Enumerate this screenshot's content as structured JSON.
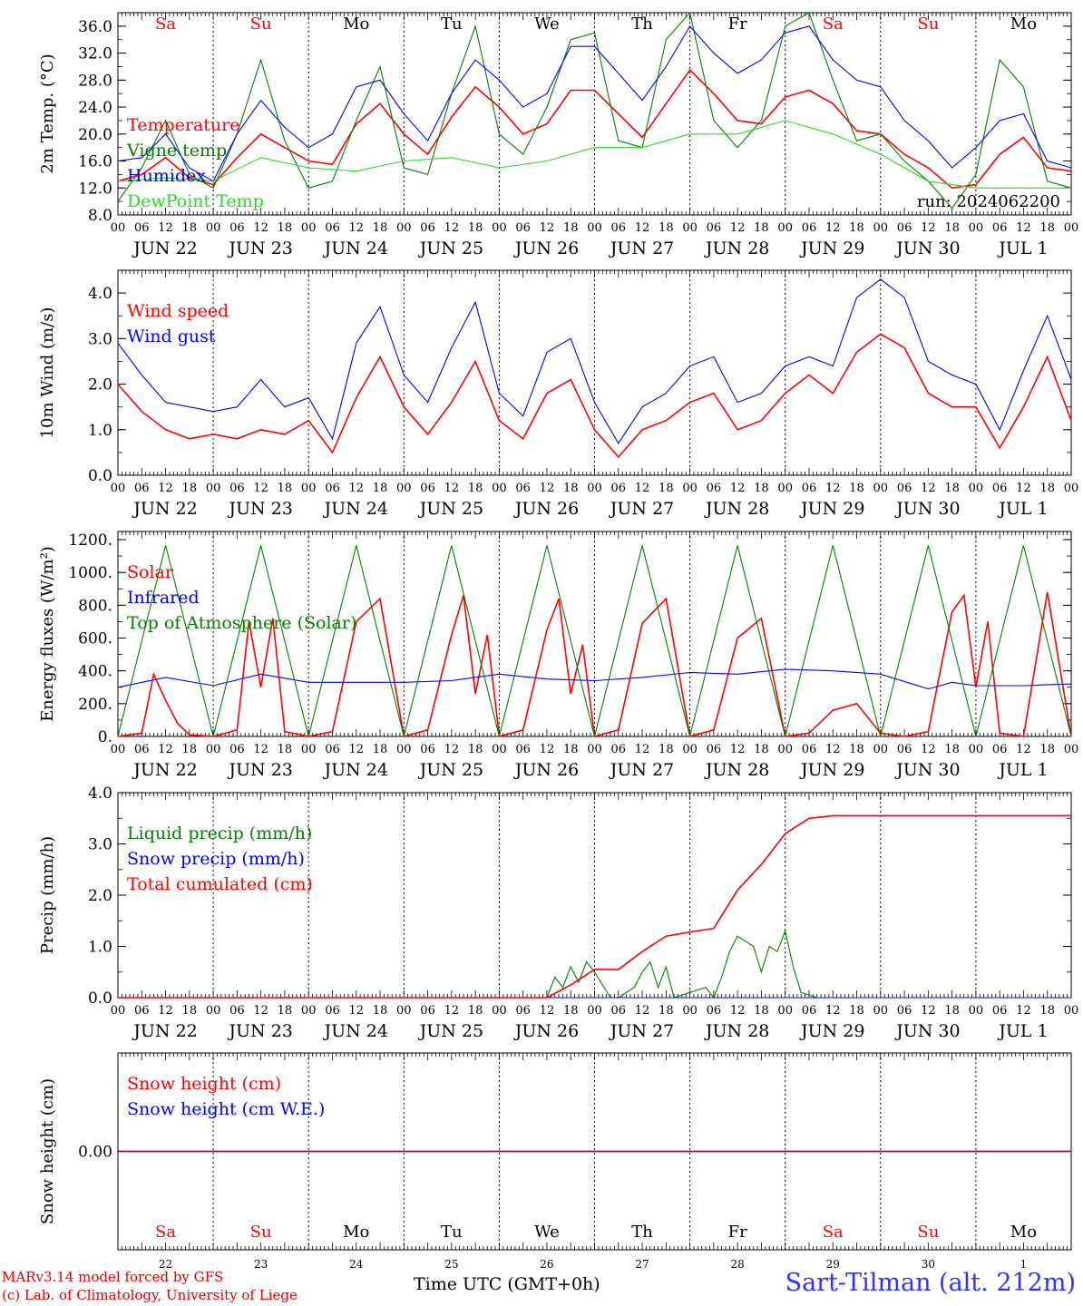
{
  "footer": {
    "credit_line1": "MARv3.14 model forced by GFS",
    "credit_line2": "(c) Lab. of Climatology, University of Liege",
    "x_axis_label": "Time UTC (GMT+0h)",
    "station": "Sart-Tilman (alt. 212m)"
  },
  "colors": {
    "red": "#ff0000",
    "green": "#008000",
    "blue": "#0000ff",
    "lightgreen": "#22dd22",
    "purple": "#800080"
  },
  "chart_data": {
    "type": "line",
    "x_days": [
      "JUN 22",
      "JUN 23",
      "JUN 24",
      "JUN 25",
      "JUN 26",
      "JUN 27",
      "JUN 28",
      "JUN 29",
      "JUN 30",
      "JUL  1"
    ],
    "x_bottom_days": [
      "22",
      "23",
      "24",
      "25",
      "26",
      "27",
      "28",
      "29",
      "30",
      "1"
    ],
    "hour_ticks": [
      "00",
      "06",
      "12",
      "18"
    ],
    "final_hour_tick": "00",
    "weekdays": [
      "Sa",
      "Su",
      "Mo",
      "Tu",
      "We",
      "Th",
      "Fr",
      "Sa",
      "Su",
      "Mo"
    ],
    "weekend_flags": [
      true,
      true,
      false,
      false,
      false,
      false,
      false,
      true,
      true,
      false
    ],
    "hours_range": [
      0,
      240
    ],
    "panels": [
      {
        "ylabel": "2m Temp. (°C)",
        "ylim": [
          8,
          38
        ],
        "yticks": [
          8,
          12,
          16,
          20,
          24,
          28,
          32,
          36
        ],
        "ytick_labels": [
          "8.0",
          "12.0",
          "16.0",
          "20.0",
          "24.0",
          "28.0",
          "32.0",
          "36.0"
        ],
        "annotation": "run: 2024062200",
        "series": [
          {
            "name": "Temperature",
            "color": "red",
            "x": [
              0,
              6,
              12,
              18,
              24,
              30,
              36,
              42,
              48,
              54,
              60,
              66,
              72,
              78,
              84,
              90,
              96,
              102,
              108,
              114,
              120,
              126,
              132,
              138,
              144,
              150,
              156,
              162,
              168,
              174,
              180,
              186,
              192,
              198,
              204,
              210,
              216,
              222,
              228,
              234,
              240
            ],
            "values": [
              13,
              14,
              16.5,
              13.5,
              12.5,
              16.5,
              20,
              18,
              16,
              15.5,
              21.5,
              24.5,
              20,
              17,
              22.5,
              27,
              24,
              20,
              21.5,
              26.5,
              26.5,
              23,
              19.5,
              24.5,
              29.5,
              26,
              22,
              21.5,
              25.5,
              26.5,
              24.5,
              20.5,
              20,
              17,
              15,
              12,
              12.5,
              17,
              19.5,
              15,
              14.5
            ]
          },
          {
            "name": "Vigne temp",
            "color": "green",
            "x": [
              0,
              6,
              12,
              18,
              24,
              30,
              36,
              42,
              48,
              54,
              60,
              66,
              72,
              78,
              84,
              90,
              96,
              102,
              108,
              114,
              120,
              126,
              132,
              138,
              144,
              150,
              156,
              162,
              168,
              174,
              180,
              186,
              192,
              198,
              204,
              210,
              216,
              222,
              228,
              234,
              240
            ],
            "values": [
              10,
              15,
              22,
              14,
              12,
              20,
              31,
              19,
              12,
              13,
              22,
              30,
              15,
              14,
              26,
              36,
              20,
              17,
              24,
              34,
              35,
              19,
              18,
              34,
              38,
              22,
              18,
              22,
              36,
              38,
              28,
              19,
              20,
              16,
              13,
              9,
              14,
              31,
              27,
              13,
              12
            ]
          },
          {
            "name": "Humidex",
            "color": "blue",
            "x": [
              0,
              6,
              12,
              18,
              24,
              30,
              36,
              42,
              48,
              54,
              60,
              66,
              72,
              78,
              84,
              90,
              96,
              102,
              108,
              114,
              120,
              126,
              132,
              138,
              144,
              150,
              156,
              162,
              168,
              174,
              180,
              186,
              192,
              198,
              204,
              210,
              216,
              222,
              228,
              234,
              240
            ],
            "values": [
              16,
              16.5,
              20,
              15,
              13,
              20,
              25,
              21,
              18,
              20,
              27,
              28,
              23,
              19,
              26,
              31,
              28,
              24,
              26,
              33,
              33,
              29,
              25,
              30,
              36,
              32,
              29,
              31,
              35,
              36,
              31,
              28,
              27,
              22,
              19,
              15,
              18,
              22,
              23,
              16,
              15
            ]
          },
          {
            "name": "DewPoint Temp",
            "color": "lightgreen",
            "x": [
              0,
              12,
              24,
              36,
              48,
              60,
              72,
              84,
              96,
              108,
              120,
              132,
              144,
              156,
              168,
              180,
              192,
              204,
              216,
              228,
              240
            ],
            "values": [
              13,
              13.5,
              13,
              16.5,
              15,
              14.5,
              16,
              16.5,
              15,
              16,
              18,
              18,
              20,
              20,
              22,
              20,
              17,
              13,
              12,
              12,
              12
            ]
          }
        ]
      },
      {
        "ylabel": "10m Wind (m/s)",
        "ylim": [
          0,
          4.5
        ],
        "yticks": [
          0,
          1,
          2,
          3,
          4
        ],
        "ytick_labels": [
          "0.0",
          "1.0",
          "2.0",
          "3.0",
          "4.0"
        ],
        "series": [
          {
            "name": "Wind speed",
            "color": "red",
            "x": [
              0,
              6,
              12,
              18,
              24,
              30,
              36,
              42,
              48,
              54,
              60,
              66,
              72,
              78,
              84,
              90,
              96,
              102,
              108,
              114,
              120,
              126,
              132,
              138,
              144,
              150,
              156,
              162,
              168,
              174,
              180,
              186,
              192,
              198,
              204,
              210,
              216,
              222,
              228,
              234,
              240
            ],
            "values": [
              2.0,
              1.4,
              1.0,
              0.8,
              0.9,
              0.8,
              1.0,
              0.9,
              1.2,
              0.5,
              1.7,
              2.6,
              1.5,
              0.9,
              1.6,
              2.5,
              1.2,
              0.8,
              1.8,
              2.1,
              1.0,
              0.4,
              1.0,
              1.2,
              1.6,
              1.8,
              1.0,
              1.2,
              1.8,
              2.2,
              1.8,
              2.7,
              3.1,
              2.8,
              1.8,
              1.5,
              1.5,
              0.6,
              1.5,
              2.6,
              1.2
            ]
          },
          {
            "name": "Wind gust",
            "color": "blue",
            "x": [
              0,
              6,
              12,
              18,
              24,
              30,
              36,
              42,
              48,
              54,
              60,
              66,
              72,
              78,
              84,
              90,
              96,
              102,
              108,
              114,
              120,
              126,
              132,
              138,
              144,
              150,
              156,
              162,
              168,
              174,
              180,
              186,
              192,
              198,
              204,
              210,
              216,
              222,
              228,
              234,
              240
            ],
            "values": [
              2.9,
              2.2,
              1.6,
              1.5,
              1.4,
              1.5,
              2.1,
              1.5,
              1.7,
              0.8,
              2.9,
              3.7,
              2.2,
              1.6,
              2.8,
              3.8,
              1.8,
              1.3,
              2.7,
              3.0,
              1.6,
              0.7,
              1.5,
              1.8,
              2.4,
              2.6,
              1.6,
              1.8,
              2.4,
              2.6,
              2.4,
              3.9,
              4.3,
              3.9,
              2.5,
              2.2,
              2.0,
              1.0,
              2.3,
              3.5,
              2.1
            ]
          }
        ]
      },
      {
        "ylabel": "Energy fluxes (W/m²)",
        "ylim": [
          0,
          1250
        ],
        "yticks": [
          0,
          200,
          400,
          600,
          800,
          1000,
          1200
        ],
        "ytick_labels": [
          "0.",
          "200.",
          "400.",
          "600.",
          "800.",
          "1000.",
          "1200."
        ],
        "series": [
          {
            "name": "Solar",
            "color": "red",
            "x": [
              0,
              6,
              9,
              12,
              15,
              18,
              24,
              30,
              33,
              36,
              39,
              42,
              48,
              54,
              60,
              66,
              72,
              78,
              84,
              87,
              90,
              93,
              96,
              102,
              108,
              111,
              114,
              117,
              120,
              126,
              132,
              138,
              144,
              150,
              156,
              162,
              168,
              174,
              180,
              186,
              192,
              198,
              204,
              210,
              213,
              216,
              219,
              222,
              228,
              234,
              240
            ],
            "values": [
              0,
              20,
              380,
              220,
              80,
              10,
              0,
              40,
              700,
              300,
              720,
              30,
              0,
              30,
              700,
              840,
              0,
              40,
              620,
              860,
              260,
              620,
              0,
              40,
              650,
              840,
              260,
              560,
              0,
              40,
              690,
              840,
              0,
              40,
              600,
              720,
              0,
              20,
              160,
              200,
              20,
              0,
              30,
              760,
              860,
              300,
              700,
              20,
              0,
              880,
              0
            ]
          },
          {
            "name": "Infrared",
            "color": "blue",
            "x": [
              0,
              12,
              24,
              36,
              48,
              60,
              72,
              84,
              96,
              108,
              120,
              132,
              144,
              156,
              168,
              180,
              192,
              204,
              210,
              216,
              228,
              240
            ],
            "values": [
              300,
              360,
              310,
              380,
              330,
              330,
              330,
              340,
              380,
              350,
              340,
              360,
              390,
              380,
              410,
              400,
              380,
              290,
              330,
              310,
              310,
              320
            ]
          },
          {
            "name": "Top of Atmosphere (Solar)",
            "color": "green",
            "x": [
              0,
              12,
              24,
              36,
              48,
              60,
              72,
              84,
              96,
              108,
              120,
              132,
              144,
              156,
              168,
              180,
              192,
              204,
              216,
              228,
              240
            ],
            "values": [
              0,
              1165,
              0,
              1165,
              0,
              1165,
              0,
              1165,
              0,
              1165,
              0,
              1165,
              0,
              1165,
              0,
              1165,
              0,
              1165,
              0,
              1165,
              0
            ]
          }
        ]
      },
      {
        "ylabel": "Precip (mm/h)",
        "ylim": [
          0,
          4
        ],
        "yticks": [
          0,
          1,
          2,
          3,
          4
        ],
        "ytick_labels": [
          "0.0",
          "1.0",
          "2.0",
          "3.0",
          "4.0"
        ],
        "series": [
          {
            "name": "Liquid precip (mm/h)",
            "color": "green",
            "x": [
              0,
              108,
              110,
              112,
              114,
              116,
              118,
              120,
              124,
              126,
              130,
              132,
              134,
              136,
              138,
              140,
              144,
              148,
              150,
              152,
              154,
              156,
              158,
              160,
              162,
              164,
              166,
              168,
              170,
              172,
              174,
              176,
              178,
              180,
              240
            ],
            "values": [
              0,
              0,
              0.4,
              0.2,
              0.6,
              0.3,
              0.7,
              0.5,
              0,
              0,
              0.2,
              0.5,
              0.7,
              0.2,
              0.6,
              0,
              0.1,
              0.2,
              0,
              0.4,
              0.9,
              1.2,
              1.1,
              1.0,
              0.5,
              1.0,
              0.9,
              1.3,
              0.6,
              0.1,
              0.05,
              0,
              0,
              0,
              0
            ]
          },
          {
            "name": "Snow precip (mm/h)",
            "color": "blue",
            "x": [
              0,
              240
            ],
            "values": [
              0,
              0
            ]
          },
          {
            "name": "Total cumulated (cm)",
            "color": "red",
            "x": [
              0,
              108,
              114,
              120,
              126,
              132,
              138,
              144,
              150,
              156,
              162,
              168,
              174,
              180,
              240
            ],
            "values": [
              0,
              0,
              0.25,
              0.55,
              0.55,
              0.9,
              1.2,
              1.28,
              1.35,
              2.1,
              2.6,
              3.2,
              3.5,
              3.55,
              3.55
            ]
          }
        ]
      },
      {
        "ylabel": "Snow height (cm)",
        "ylim": [
          -1,
          1
        ],
        "yticks": [
          0
        ],
        "ytick_labels": [
          "0.00"
        ],
        "series": [
          {
            "name": "Snow height (cm)",
            "color": "red",
            "x": [
              0,
              240
            ],
            "values": [
              0,
              0
            ]
          },
          {
            "name": "Snow height (cm W.E.)",
            "color": "blue",
            "x": [
              0,
              240
            ],
            "values": [
              0,
              0
            ]
          }
        ]
      }
    ]
  }
}
